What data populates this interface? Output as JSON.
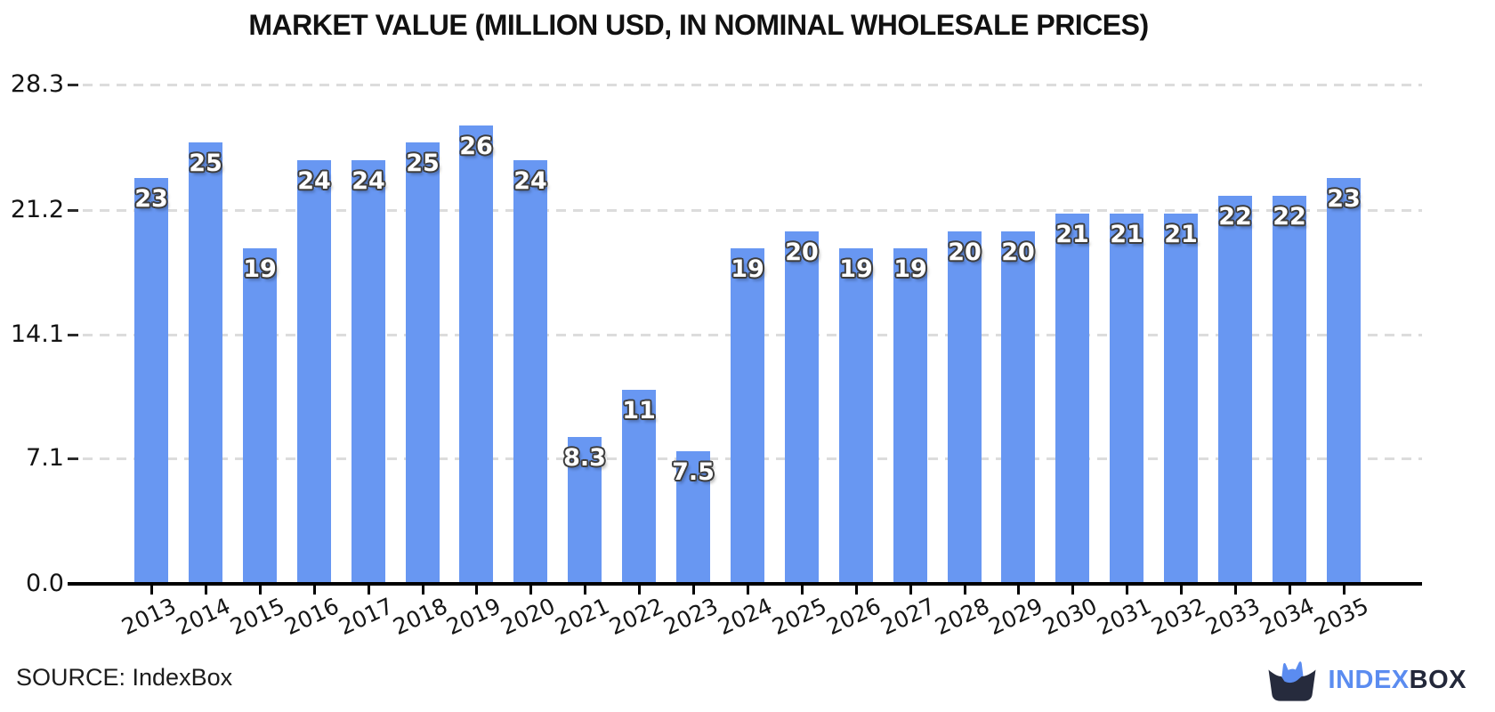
{
  "title": "MARKET VALUE (MILLION USD, IN NOMINAL WHOLESALE PRICES)",
  "source_label": "SOURCE: IndexBox",
  "logo": {
    "icon": "cat-in-box-icon",
    "text_primary": "INDEX",
    "text_secondary": "BOX"
  },
  "colors": {
    "bar": "#6897f2",
    "bar_label_fill": "#ffffff",
    "bar_label_outline": "#3d3d3d",
    "gridline": "#dcdcdc",
    "axis": "#000000",
    "logo_blue": "#5b8cf0",
    "logo_dark": "#23283a"
  },
  "chart_data": {
    "type": "bar",
    "title": "MARKET VALUE (MILLION USD, IN NOMINAL WHOLESALE PRICES)",
    "categories": [
      "2013",
      "2014",
      "2015",
      "2016",
      "2017",
      "2018",
      "2019",
      "2020",
      "2021",
      "2022",
      "2023",
      "2024",
      "2025",
      "2026",
      "2027",
      "2028",
      "2029",
      "2030",
      "2031",
      "2032",
      "2033",
      "2034",
      "2035"
    ],
    "values": [
      23,
      25,
      19,
      24,
      24,
      25,
      26,
      24,
      8.3,
      11,
      7.5,
      19,
      20,
      19,
      19,
      20,
      20,
      21,
      21,
      21,
      22,
      22,
      23
    ],
    "bar_labels": [
      "23",
      "25",
      "19",
      "24",
      "24",
      "25",
      "26",
      "24",
      "8.3",
      "11",
      "7.5",
      "19",
      "20",
      "19",
      "19",
      "20",
      "20",
      "21",
      "21",
      "21",
      "22",
      "22",
      "23"
    ],
    "xlabel": "",
    "ylabel": "",
    "yticks": [
      0.0,
      7.1,
      14.1,
      21.2,
      28.3
    ],
    "ytick_labels": [
      "0.0",
      "7.1",
      "14.1",
      "21.2",
      "28.3"
    ],
    "ylim": [
      0,
      28.3
    ],
    "grid": "horizontal-dashed",
    "legend": "none",
    "bar_color": "#6897f2"
  }
}
